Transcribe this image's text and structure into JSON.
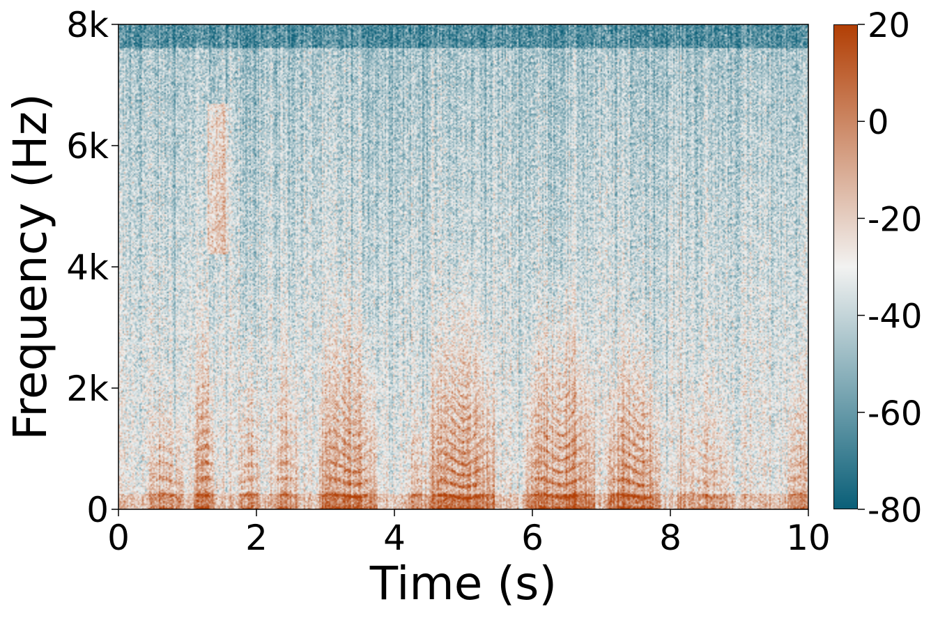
{
  "chart_data": {
    "type": "heatmap",
    "subtype": "spectrogram",
    "xlabel": "Time (s)",
    "ylabel": "Frequency (Hz)",
    "xlim": [
      0,
      10
    ],
    "ylim": [
      0,
      8000
    ],
    "x_ticks": [
      0,
      2,
      4,
      6,
      8,
      10
    ],
    "x_tick_labels": [
      "0",
      "2",
      "4",
      "6",
      "8",
      "10"
    ],
    "y_ticks": [
      0,
      2000,
      4000,
      6000,
      8000
    ],
    "y_tick_labels": [
      "0",
      "2k",
      "4k",
      "6k",
      "8k"
    ],
    "colorbar": {
      "range": [
        -80,
        20
      ],
      "ticks": [
        20,
        0,
        -20,
        -40,
        -60,
        -80
      ],
      "tick_labels": [
        "20",
        "0",
        "-20",
        "-40",
        "-60",
        "-80"
      ],
      "colormap_low": "#0a5f78",
      "colormap_mid": "#f2f2f1",
      "colormap_high": "#b23f05"
    },
    "voiced_segments": [
      {
        "start": 0.45,
        "end": 0.95,
        "level": 12,
        "f0": 230,
        "top_hz": 2200
      },
      {
        "start": 1.1,
        "end": 1.4,
        "level": 16,
        "f0": 230,
        "top_hz": 3900
      },
      {
        "start": 1.75,
        "end": 2.05,
        "level": 14,
        "f0": 220,
        "top_hz": 3500
      },
      {
        "start": 2.25,
        "end": 2.6,
        "level": 12,
        "f0": 230,
        "top_hz": 3700
      },
      {
        "start": 2.9,
        "end": 3.75,
        "level": 16,
        "f0": 230,
        "top_hz": 4100
      },
      {
        "start": 4.2,
        "end": 4.5,
        "level": 10,
        "f0": 210,
        "top_hz": 2000
      },
      {
        "start": 4.5,
        "end": 5.45,
        "level": 18,
        "f0": 210,
        "top_hz": 4200
      },
      {
        "start": 5.9,
        "end": 6.9,
        "level": 18,
        "f0": 230,
        "top_hz": 4100
      },
      {
        "start": 7.1,
        "end": 7.85,
        "level": 18,
        "f0": 220,
        "top_hz": 3500
      },
      {
        "start": 8.1,
        "end": 8.9,
        "level": 8,
        "f0": 230,
        "top_hz": 2500
      },
      {
        "start": 9.7,
        "end": 10.0,
        "level": 12,
        "f0": 230,
        "top_hz": 3000
      }
    ],
    "fricative_segments": [
      {
        "start": 1.3,
        "end": 1.6,
        "low_hz": 4200,
        "high_hz": 6700,
        "level": 0
      }
    ],
    "grid": false
  }
}
